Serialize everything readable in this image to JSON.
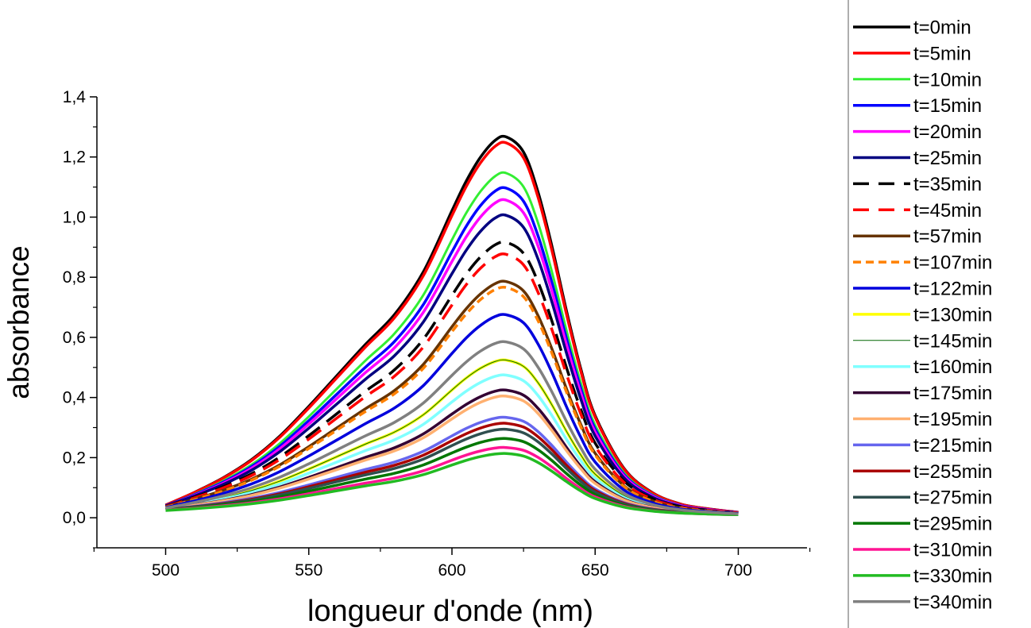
{
  "chart_data": {
    "type": "line",
    "xlabel": "longueur d'onde (nm)",
    "ylabel": "absorbance",
    "xlim": [
      476,
      724
    ],
    "ylim": [
      -0.1,
      1.4
    ],
    "xticks": [
      500,
      550,
      600,
      650,
      700
    ],
    "xtick_labels": [
      "500",
      "550",
      "600",
      "650",
      "700"
    ],
    "yticks": [
      0.0,
      0.2,
      0.4,
      0.6,
      0.8,
      1.0,
      1.2,
      1.4
    ],
    "ytick_labels": [
      "0,0",
      "0,2",
      "0,4",
      "0,6",
      "0,8",
      "1,0",
      "1,2",
      "1,4"
    ],
    "grid": false,
    "legend_position": "right",
    "x": [
      500,
      510,
      520,
      530,
      540,
      550,
      560,
      570,
      580,
      590,
      600,
      605,
      610,
      615,
      619,
      625,
      630,
      635,
      640,
      645,
      650,
      660,
      670,
      680,
      690,
      700
    ],
    "series": [
      {
        "name": "t=0min",
        "color": "#000000",
        "dash": "solid",
        "width": 3.5,
        "peak": 1.26,
        "base": 0.042,
        "end": 0.018
      },
      {
        "name": "t=5min",
        "color": "#ff0000",
        "dash": "solid",
        "width": 3.5,
        "peak": 1.24,
        "base": 0.042,
        "end": 0.018
      },
      {
        "name": "t=10min",
        "color": "#33ee33",
        "dash": "solid",
        "width": 3,
        "peak": 1.14,
        "base": 0.04,
        "end": 0.017
      },
      {
        "name": "t=15min",
        "color": "#0000ff",
        "dash": "solid",
        "width": 3.5,
        "peak": 1.09,
        "base": 0.04,
        "end": 0.017
      },
      {
        "name": "t=20min",
        "color": "#ff00ff",
        "dash": "solid",
        "width": 3.5,
        "peak": 1.05,
        "base": 0.039,
        "end": 0.017
      },
      {
        "name": "t=25min",
        "color": "#000080",
        "dash": "solid",
        "width": 3.5,
        "peak": 1.0,
        "base": 0.039,
        "end": 0.016
      },
      {
        "name": "t=35min",
        "color": "#000000",
        "dash": "dashed",
        "width": 3.5,
        "peak": 0.91,
        "base": 0.038,
        "end": 0.016
      },
      {
        "name": "t=45min",
        "color": "#ff0000",
        "dash": "dashed",
        "width": 3.5,
        "peak": 0.87,
        "base": 0.037,
        "end": 0.016
      },
      {
        "name": "t=57min",
        "color": "#663300",
        "dash": "solid",
        "width": 3.5,
        "peak": 0.78,
        "base": 0.036,
        "end": 0.015
      },
      {
        "name": "t=107min",
        "color": "#ff8000",
        "dash": "short-dashed",
        "width": 3.5,
        "peak": 0.76,
        "base": 0.035,
        "end": 0.015
      },
      {
        "name": "t=122min",
        "color": "#0000dd",
        "dash": "solid",
        "width": 3.5,
        "peak": 0.67,
        "base": 0.034,
        "end": 0.014
      },
      {
        "name": "t=130min",
        "color": "#ffff00",
        "dash": "solid",
        "width": 3.5,
        "peak": 0.52,
        "base": 0.03,
        "end": 0.012
      },
      {
        "name": "t=145min",
        "color": "#006600",
        "dash": "solid",
        "width": 1,
        "peak": 0.52,
        "base": 0.03,
        "end": 0.012
      },
      {
        "name": "t=160min",
        "color": "#80ffff",
        "dash": "solid",
        "width": 3.5,
        "peak": 0.47,
        "base": 0.03,
        "end": 0.012
      },
      {
        "name": "t=175min",
        "color": "#330033",
        "dash": "solid",
        "width": 3.5,
        "peak": 0.42,
        "base": 0.029,
        "end": 0.012
      },
      {
        "name": "t=195min",
        "color": "#ffb070",
        "dash": "solid",
        "width": 3.5,
        "peak": 0.4,
        "base": 0.029,
        "end": 0.012
      },
      {
        "name": "t=215min",
        "color": "#6666ee",
        "dash": "solid",
        "width": 3.5,
        "peak": 0.33,
        "base": 0.028,
        "end": 0.011
      },
      {
        "name": "t=255min",
        "color": "#aa0000",
        "dash": "solid",
        "width": 3.5,
        "peak": 0.31,
        "base": 0.027,
        "end": 0.011
      },
      {
        "name": "t=275min",
        "color": "#2f4f4f",
        "dash": "solid",
        "width": 3.5,
        "peak": 0.29,
        "base": 0.027,
        "end": 0.011
      },
      {
        "name": "t=295min",
        "color": "#007700",
        "dash": "solid",
        "width": 3.5,
        "peak": 0.26,
        "base": 0.026,
        "end": 0.01
      },
      {
        "name": "t=310min",
        "color": "#ff1493",
        "dash": "solid",
        "width": 3.5,
        "peak": 0.23,
        "base": 0.025,
        "end": 0.01
      },
      {
        "name": "t=330min",
        "color": "#22bb22",
        "dash": "solid",
        "width": 3.5,
        "peak": 0.21,
        "base": 0.024,
        "end": 0.01
      },
      {
        "name": "t=340min",
        "color": "#808080",
        "dash": "solid",
        "width": 3.5,
        "peak": 0.58,
        "base": 0.032,
        "end": 0.013
      }
    ],
    "profile": [
      0.0,
      0.035,
      0.075,
      0.125,
      0.19,
      0.27,
      0.355,
      0.44,
      0.52,
      0.635,
      0.8,
      0.88,
      0.945,
      0.99,
      1.0,
      0.96,
      0.855,
      0.705,
      0.535,
      0.38,
      0.255,
      0.115,
      0.05,
      0.02,
      0.008,
      0.0
    ]
  }
}
